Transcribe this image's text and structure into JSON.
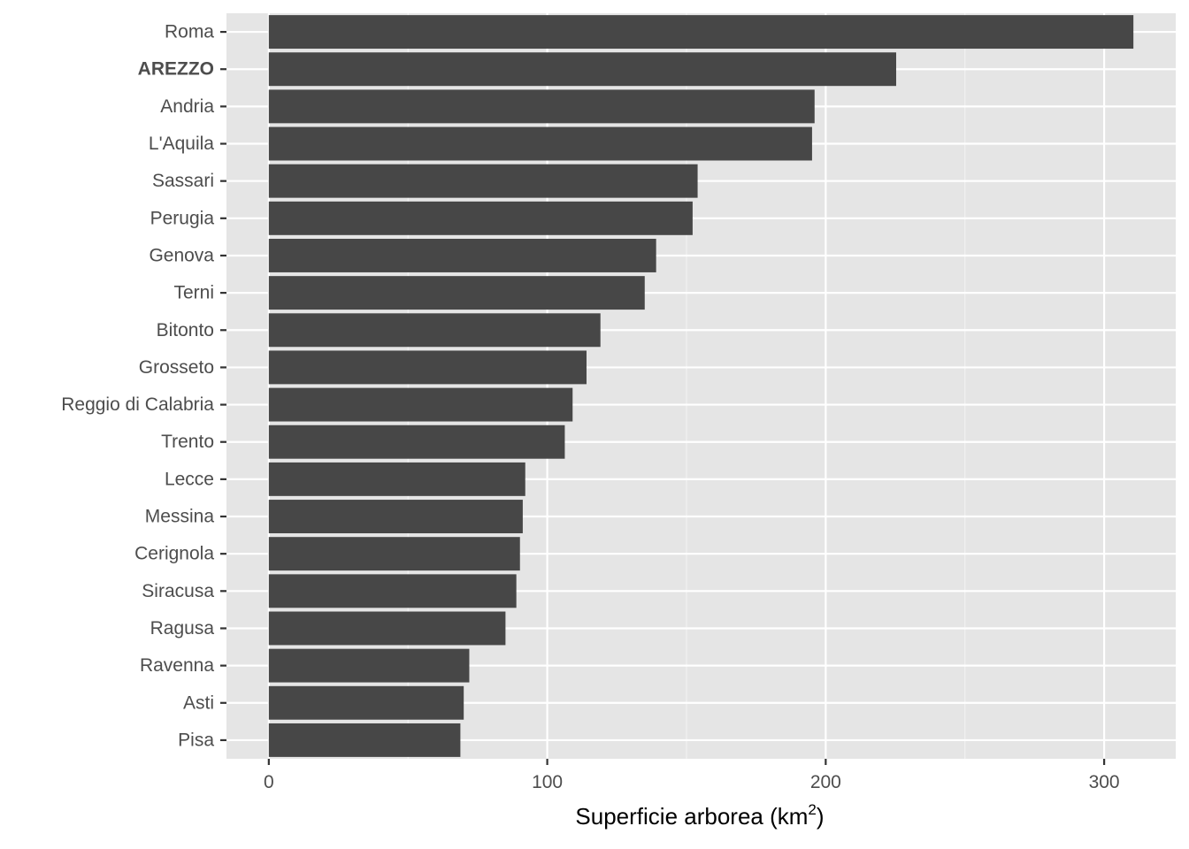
{
  "chart_data": {
    "type": "bar",
    "orientation": "horizontal",
    "categories": [
      "Roma",
      "AREZZO",
      "Andria",
      "L'Aquila",
      "Sassari",
      "Perugia",
      "Genova",
      "Terni",
      "Bitonto",
      "Grosseto",
      "Reggio di Calabria",
      "Trento",
      "Lecce",
      "Messina",
      "Cerignola",
      "Siracusa",
      "Ragusa",
      "Ravenna",
      "Asti",
      "Pisa"
    ],
    "highlighted_category": "AREZZO",
    "values": [
      310.5,
      225.3,
      196.0,
      195.1,
      154.0,
      152.2,
      139.1,
      135.0,
      119.1,
      114.1,
      109.1,
      106.3,
      92.1,
      91.2,
      90.2,
      88.9,
      85.0,
      72.0,
      70.0,
      68.8
    ],
    "xlabel": "Superficie arborea (km²)",
    "xlabel_main": "Superficie arborea (km",
    "xlabel_sup": "2",
    "xlabel_close": ")",
    "ylabel": "",
    "xlim": [
      -15.2,
      325.7
    ],
    "x_ticks": [
      0,
      100,
      200,
      300
    ],
    "x_tick_labels": [
      "0",
      "100",
      "200",
      "300"
    ],
    "grid": true,
    "colors": {
      "bar": "#474747",
      "panel_background": "#e5e5e5",
      "grid_major": "#ffffff",
      "grid_minor": "#f2f2f2",
      "tick_label": "#4d4d4d",
      "tick_mark": "#333333"
    }
  }
}
